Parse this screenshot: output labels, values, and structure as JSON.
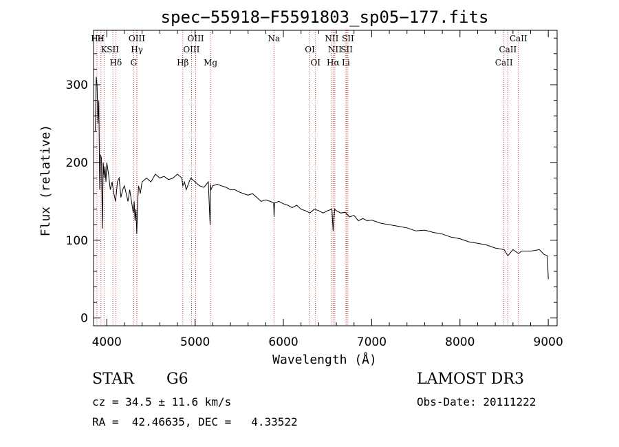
{
  "chart_data": {
    "type": "line",
    "title": "spec−55918−F5591803_sp05−177.fits",
    "xlabel": "Wavelength (Å)",
    "ylabel": "Flux (relative)",
    "xlim": [
      3850,
      9100
    ],
    "ylim": [
      -10,
      370
    ],
    "x_ticks": [
      4000,
      5000,
      6000,
      7000,
      8000,
      9000
    ],
    "y_ticks": [
      0,
      100,
      200,
      300
    ],
    "series": [
      {
        "name": "spectrum",
        "x": [
          3870,
          3880,
          3890,
          3900,
          3910,
          3920,
          3930,
          3940,
          3950,
          3960,
          3970,
          3980,
          3990,
          4000,
          4020,
          4040,
          4060,
          4080,
          4100,
          4120,
          4140,
          4160,
          4180,
          4200,
          4220,
          4240,
          4260,
          4280,
          4300,
          4310,
          4320,
          4330,
          4340,
          4350,
          4360,
          4380,
          4400,
          4450,
          4500,
          4550,
          4600,
          4650,
          4700,
          4750,
          4800,
          4850,
          4861,
          4880,
          4900,
          4950,
          5000,
          5050,
          5100,
          5150,
          5170,
          5175,
          5180,
          5200,
          5250,
          5300,
          5350,
          5400,
          5450,
          5500,
          5550,
          5600,
          5650,
          5700,
          5750,
          5800,
          5850,
          5890,
          5895,
          5900,
          5950,
          6000,
          6050,
          6100,
          6150,
          6200,
          6250,
          6300,
          6350,
          6400,
          6450,
          6500,
          6550,
          6563,
          6580,
          6600,
          6650,
          6700,
          6750,
          6800,
          6850,
          6900,
          6950,
          7000,
          7100,
          7200,
          7300,
          7400,
          7500,
          7600,
          7700,
          7800,
          7900,
          8000,
          8100,
          8200,
          8300,
          8400,
          8500,
          8542,
          8600,
          8662,
          8700,
          8800,
          8900,
          8950,
          8990,
          9000
        ],
        "y": [
          240,
          310,
          300,
          250,
          280,
          165,
          210,
          205,
          115,
          200,
          180,
          195,
          175,
          200,
          185,
          165,
          175,
          160,
          150,
          175,
          180,
          155,
          165,
          170,
          160,
          150,
          165,
          150,
          135,
          150,
          125,
          140,
          108,
          150,
          170,
          160,
          175,
          180,
          175,
          185,
          180,
          182,
          178,
          180,
          185,
          180,
          170,
          175,
          165,
          180,
          175,
          170,
          168,
          175,
          120,
          172,
          165,
          170,
          172,
          170,
          168,
          165,
          165,
          162,
          160,
          158,
          160,
          155,
          150,
          152,
          150,
          148,
          130,
          148,
          150,
          147,
          145,
          142,
          145,
          140,
          138,
          135,
          140,
          138,
          135,
          138,
          140,
          112,
          140,
          138,
          135,
          136,
          130,
          132,
          125,
          128,
          125,
          126,
          122,
          120,
          118,
          116,
          112,
          113,
          110,
          108,
          104,
          102,
          98,
          96,
          94,
          90,
          88,
          80,
          88,
          83,
          86,
          86,
          88,
          82,
          80,
          50
        ]
      }
    ],
    "line_ids": [
      {
        "label": "H",
        "x": 3934
      },
      {
        "label": "K",
        "x": 3969
      },
      {
        "label": "Hδ",
        "x": 4102
      },
      {
        "label": "He",
        "x": 3889
      },
      {
        "label": "SII",
        "x": 4069
      },
      {
        "label": "G",
        "x": 4305
      },
      {
        "label": "OIII",
        "x": 4340
      },
      {
        "label": "Hγ",
        "x": 4341
      },
      {
        "label": "Hβ",
        "x": 4861
      },
      {
        "label": "OIII",
        "x": 5007
      },
      {
        "label": "OIII",
        "x": 4959
      },
      {
        "label": "Mg",
        "x": 5175
      },
      {
        "label": "Na",
        "x": 5893
      },
      {
        "label": "OI",
        "x": 6300
      },
      {
        "label": "OI",
        "x": 6364
      },
      {
        "label": "NII",
        "x": 6548
      },
      {
        "label": "SII",
        "x": 6717
      },
      {
        "label": "Hα",
        "x": 6563
      },
      {
        "label": "SII",
        "x": 6731
      },
      {
        "label": "NII",
        "x": 6583
      },
      {
        "label": "Li",
        "x": 6708
      },
      {
        "label": "CaII",
        "x": 8662
      },
      {
        "label": "CaII",
        "x": 8542
      },
      {
        "label": "CaII",
        "x": 8498
      }
    ]
  },
  "info": {
    "object_class": "STAR",
    "subclass": "G6",
    "survey": "LAMOST DR3",
    "cz": "cz = 34.5 ± 11.6 km/s",
    "obs_date": "Obs-Date: 20111222",
    "radec": "RA =  42.46635, DEC =   4.33522"
  },
  "colors": {
    "spectrum": "#000000",
    "line_markers": "#c00000",
    "axes": "#000000"
  }
}
